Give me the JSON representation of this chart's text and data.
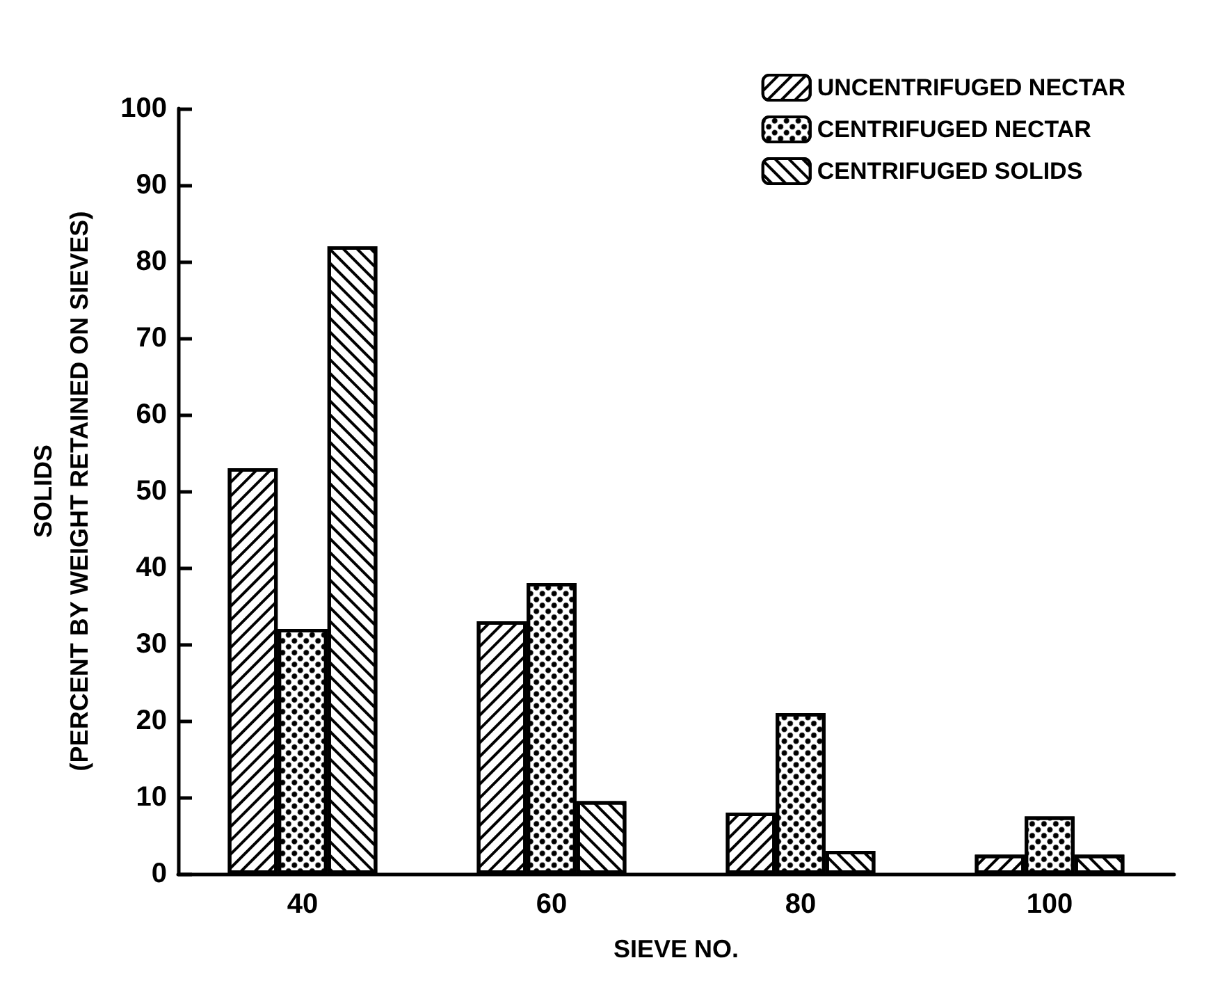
{
  "chart_data": {
    "type": "bar",
    "categories": [
      "40",
      "60",
      "80",
      "100"
    ],
    "xlabel": "SIEVE NO.",
    "ylabel": "SOLIDS\n(PERCENT BY WEIGHT RETAINED ON SIEVES)",
    "ylim": [
      0,
      100
    ],
    "yticks": [
      0,
      10,
      20,
      30,
      40,
      50,
      60,
      70,
      80,
      90,
      100
    ],
    "grid": false,
    "legend": "top right",
    "series": [
      {
        "name": "UNCENTRIFUGED NECTAR",
        "color": "#ffffff",
        "values": [
          53,
          33,
          8,
          2.5
        ]
      },
      {
        "name": "CENTRIFUGED NECTAR",
        "color": "#ffffff",
        "values": [
          32,
          38,
          21,
          7.5
        ]
      },
      {
        "name": "CENTRIFUGED SOLIDS",
        "color": "#ffffff",
        "values": [
          82,
          9.5,
          3,
          2.5
        ]
      }
    ]
  }
}
